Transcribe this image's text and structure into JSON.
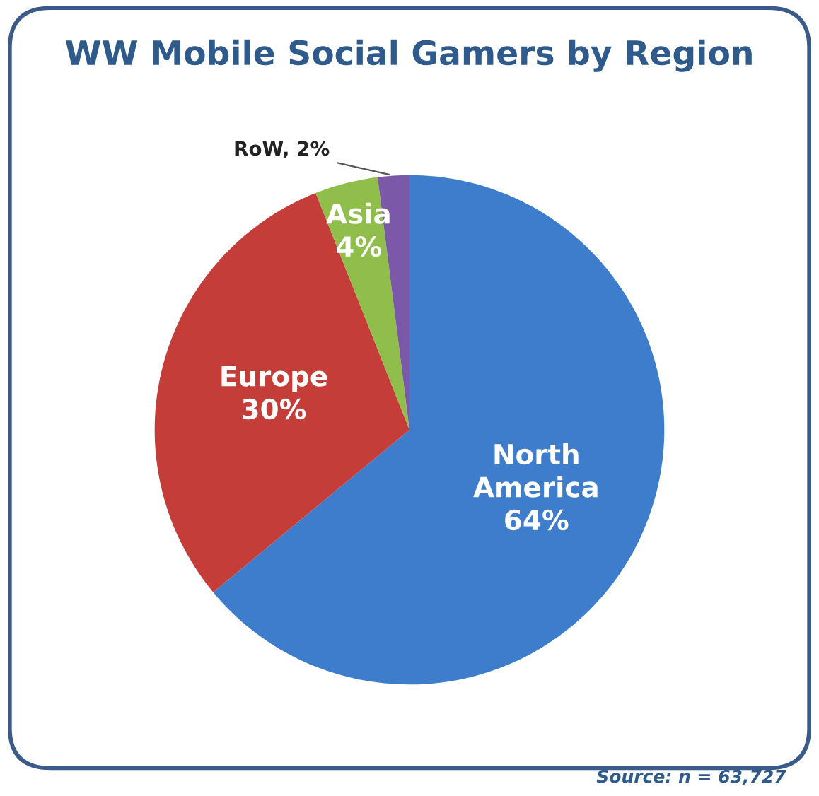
{
  "chart_data": {
    "type": "pie",
    "title": "WW Mobile Social Gamers by Region",
    "categories": [
      "North America",
      "Europe",
      "Asia",
      "RoW"
    ],
    "values": [
      64,
      30,
      4,
      2
    ],
    "value_labels": [
      "64%",
      "30%",
      "4%",
      "2%"
    ],
    "colors": [
      "#3d7dcc",
      "#c43d38",
      "#8fbf4a",
      "#7b59a8"
    ],
    "annotations": [
      "Source: n = 63,727"
    ],
    "legend": false
  }
}
